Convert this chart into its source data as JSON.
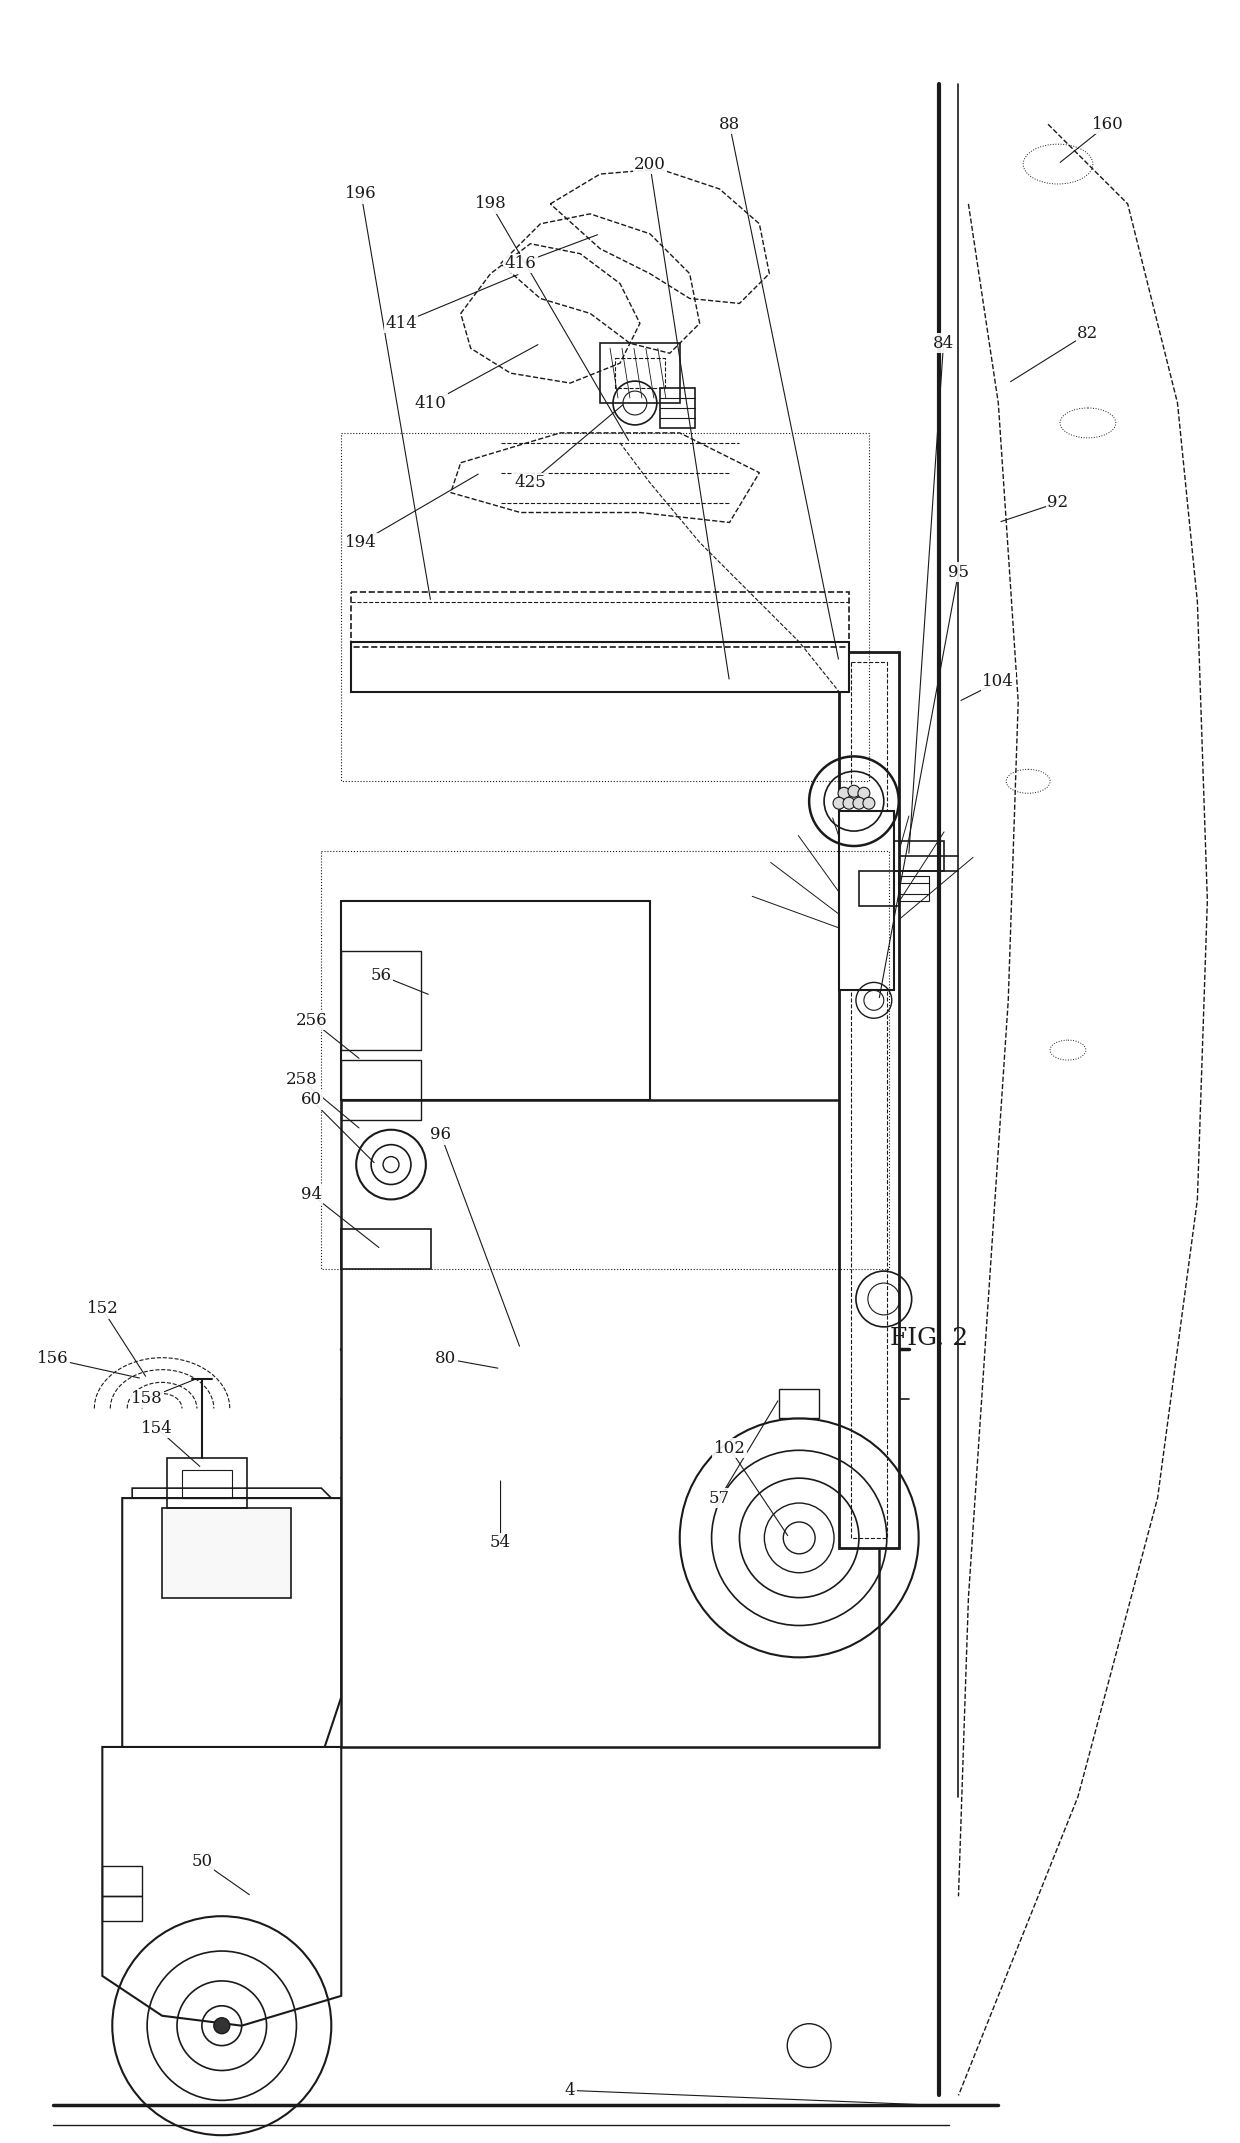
{
  "title": "FIG. 2",
  "bg_color": "#ffffff",
  "line_color": "#1a1a1a",
  "fig_width": 12.4,
  "fig_height": 21.43,
  "dpi": 100
}
